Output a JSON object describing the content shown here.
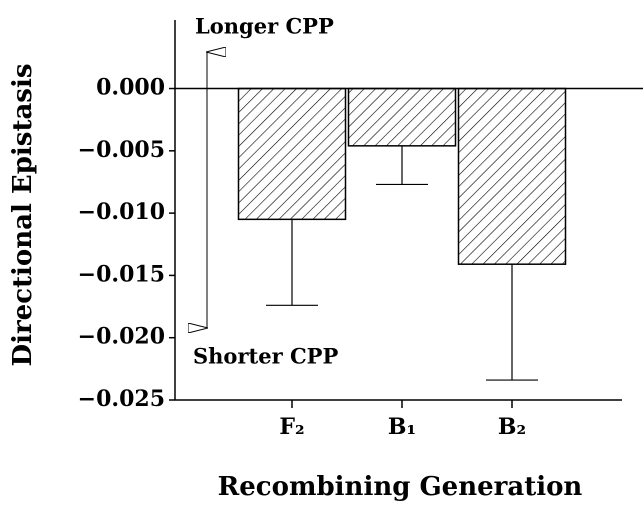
{
  "chart_data": {
    "type": "bar",
    "categories": [
      "F₂",
      "B₁",
      "B₂"
    ],
    "values": [
      -0.0105,
      -0.0046,
      -0.0141
    ],
    "errors": [
      0.0069,
      0.0031,
      0.0093
    ],
    "ylim": [
      -0.025,
      0.0055
    ],
    "yticks": [
      {
        "value": 0,
        "label": "0.000"
      },
      {
        "value": -0.005,
        "label": "−0.005"
      },
      {
        "value": -0.01,
        "label": "−0.010"
      },
      {
        "value": -0.015,
        "label": "−0.015"
      },
      {
        "value": -0.02,
        "label": "−0.020"
      },
      {
        "value": -0.025,
        "label": "−0.025"
      }
    ],
    "ylabel": "Directional Epistasis",
    "xlabel": "Recombining Generation",
    "annotations": [
      "Longer CPP",
      "Shorter CPP"
    ],
    "color": "#000000"
  }
}
